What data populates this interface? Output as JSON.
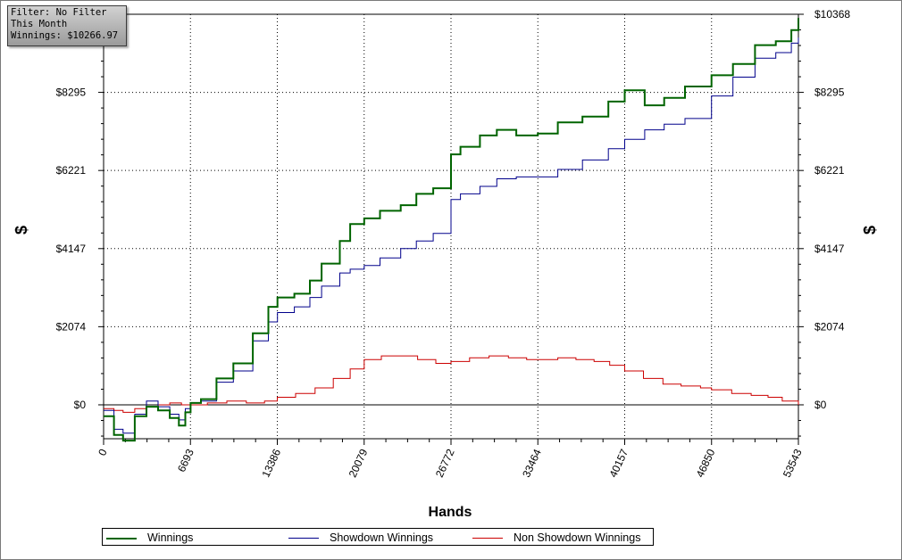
{
  "info": {
    "filter": "Filter: No Filter",
    "period": "This Month",
    "winnings": "Winnings: $10266.97"
  },
  "chart_data": {
    "type": "line",
    "xlabel": "Hands",
    "ylabel": "$",
    "xlim": [
      0,
      53543
    ],
    "ylim": [
      -900,
      10368
    ],
    "x_ticks": [
      0,
      6693,
      13386,
      20079,
      26772,
      33464,
      40157,
      46850,
      53543
    ],
    "y_ticks": [
      0,
      2074,
      4147,
      6221,
      8295,
      10368
    ],
    "y_tick_labels": [
      "$0",
      "$2074",
      "$4147",
      "$6221",
      "$8295",
      "$10368"
    ],
    "left_y_tick_labels": [
      "$0",
      "$2074",
      "$4147",
      "$6221",
      "$8295"
    ],
    "grid": true,
    "legend_position": "bottom",
    "series": [
      {
        "name": "Winnings",
        "color": "#006400",
        "x": [
          0,
          800,
          1500,
          2400,
          3300,
          4200,
          5100,
          5800,
          6300,
          6700,
          7500,
          8700,
          10000,
          11500,
          12700,
          13400,
          14700,
          15900,
          16800,
          18200,
          19000,
          20079,
          21300,
          22900,
          24100,
          25400,
          26772,
          27500,
          29000,
          30300,
          31800,
          33464,
          35000,
          36900,
          38900,
          40157,
          41700,
          43200,
          44800,
          46850,
          48500,
          50200,
          51800,
          53000,
          53543
        ],
        "y": [
          -300,
          -800,
          -950,
          -300,
          -50,
          -150,
          -350,
          -550,
          -200,
          50,
          150,
          700,
          1100,
          1900,
          2600,
          2850,
          2950,
          3300,
          3750,
          4350,
          4800,
          4950,
          5150,
          5300,
          5600,
          5750,
          6650,
          6850,
          7150,
          7300,
          7150,
          7200,
          7500,
          7650,
          8050,
          8350,
          7950,
          8150,
          8450,
          8750,
          9050,
          9550,
          9650,
          9950,
          10266.97
        ]
      },
      {
        "name": "Showdown Winnings",
        "color": "#00008b",
        "x": [
          0,
          800,
          1500,
          2400,
          3300,
          4200,
          5100,
          5800,
          6300,
          6700,
          7500,
          8700,
          10000,
          11500,
          12700,
          13400,
          14700,
          15900,
          16800,
          18200,
          19000,
          20079,
          21300,
          22900,
          24100,
          25400,
          26772,
          27500,
          29000,
          30300,
          31800,
          33464,
          35000,
          36900,
          38900,
          40157,
          41700,
          43200,
          44800,
          46850,
          48500,
          50200,
          51800,
          53000,
          53543
        ],
        "y": [
          -150,
          -650,
          -750,
          -250,
          100,
          -50,
          -250,
          -400,
          -100,
          50,
          100,
          600,
          900,
          1700,
          2200,
          2450,
          2600,
          2850,
          3150,
          3500,
          3600,
          3700,
          3900,
          4150,
          4350,
          4550,
          5450,
          5600,
          5800,
          6000,
          6050,
          6050,
          6250,
          6500,
          6800,
          7050,
          7300,
          7450,
          7600,
          8200,
          8700,
          9200,
          9350,
          9600,
          9750
        ]
      },
      {
        "name": "Non Showdown Winnings",
        "color": "#cc0000",
        "x": [
          0,
          800,
          1500,
          2400,
          3300,
          4200,
          5100,
          6000,
          6693,
          8000,
          9500,
          11000,
          12400,
          13386,
          14800,
          16300,
          17700,
          19000,
          20079,
          21400,
          22800,
          24200,
          25600,
          26772,
          28200,
          29700,
          31200,
          32600,
          33464,
          35000,
          36400,
          37800,
          39000,
          40157,
          41600,
          43100,
          44500,
          46000,
          46850,
          48400,
          49900,
          51200,
          52300,
          53543
        ],
        "y": [
          -100,
          -150,
          -200,
          -100,
          -50,
          0,
          50,
          0,
          0,
          50,
          100,
          50,
          100,
          200,
          300,
          450,
          700,
          950,
          1200,
          1300,
          1300,
          1200,
          1100,
          1150,
          1250,
          1300,
          1250,
          1200,
          1200,
          1250,
          1200,
          1150,
          1050,
          900,
          700,
          550,
          500,
          450,
          400,
          300,
          250,
          200,
          100,
          0
        ]
      }
    ]
  }
}
